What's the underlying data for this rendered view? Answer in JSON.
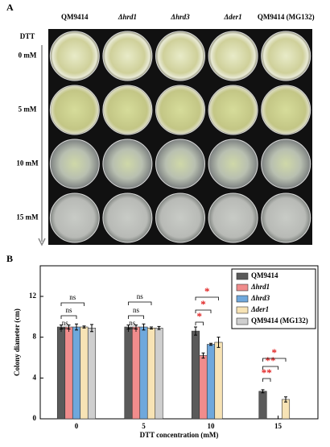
{
  "panel_a": {
    "label": "A",
    "columns": [
      "QM9414",
      "Δhrd1",
      "Δhrd3",
      "Δder1",
      "QM9414 (MG132)"
    ],
    "axis_label": "DTT",
    "rows": [
      "0 mM",
      "5 mM",
      "10 mM",
      "15 mM"
    ]
  },
  "chart_data": {
    "type": "bar",
    "panel_label": "B",
    "x_label": "DTT concentration (mM)",
    "y_label": "Colony diameter (cm)",
    "categories": [
      "0",
      "5",
      "10",
      "15"
    ],
    "series": [
      {
        "name": "QM9414",
        "color": "#5a5a5a",
        "values": [
          9.0,
          9.0,
          8.6,
          2.7
        ],
        "errors": [
          0.2,
          0.2,
          0.4,
          0.15
        ]
      },
      {
        "name": "Δhrd1",
        "color": "#f08c8c",
        "values": [
          9.0,
          9.0,
          6.2,
          0
        ],
        "errors": [
          0.2,
          0.2,
          0.25,
          0
        ]
      },
      {
        "name": "Δhrd3",
        "color": "#6fa8dc",
        "values": [
          9.0,
          9.0,
          7.3,
          0
        ],
        "errors": [
          0.3,
          0.3,
          0.1,
          0
        ]
      },
      {
        "name": "Δder1",
        "color": "#f7e3b5",
        "values": [
          9.0,
          8.9,
          7.5,
          1.9
        ],
        "errors": [
          0.1,
          0.1,
          0.5,
          0.25
        ]
      },
      {
        "name": "QM9414 (MG132)",
        "color": "#cfcfcf",
        "values": [
          8.9,
          8.9,
          null,
          null
        ],
        "errors": [
          0.35,
          0.15,
          null,
          null
        ]
      }
    ],
    "ylim": [
      0,
      15
    ],
    "yticks": [
      0,
      4,
      8,
      12
    ],
    "annotations": [
      {
        "label": "ns",
        "color": "#000000"
      },
      {
        "label": "ns",
        "color": "#000000"
      },
      {
        "label": "ns",
        "color": "#000000"
      },
      {
        "label": "ns",
        "color": "#000000"
      },
      {
        "label": "ns",
        "color": "#000000"
      },
      {
        "label": "ns",
        "color": "#000000"
      },
      {
        "label": "*",
        "color": "#e02020"
      },
      {
        "label": "*",
        "color": "#e02020"
      },
      {
        "label": "*",
        "color": "#e02020"
      },
      {
        "label": "**",
        "color": "#e02020"
      },
      {
        "label": "**",
        "color": "#e02020"
      },
      {
        "label": "*",
        "color": "#e02020"
      }
    ]
  }
}
